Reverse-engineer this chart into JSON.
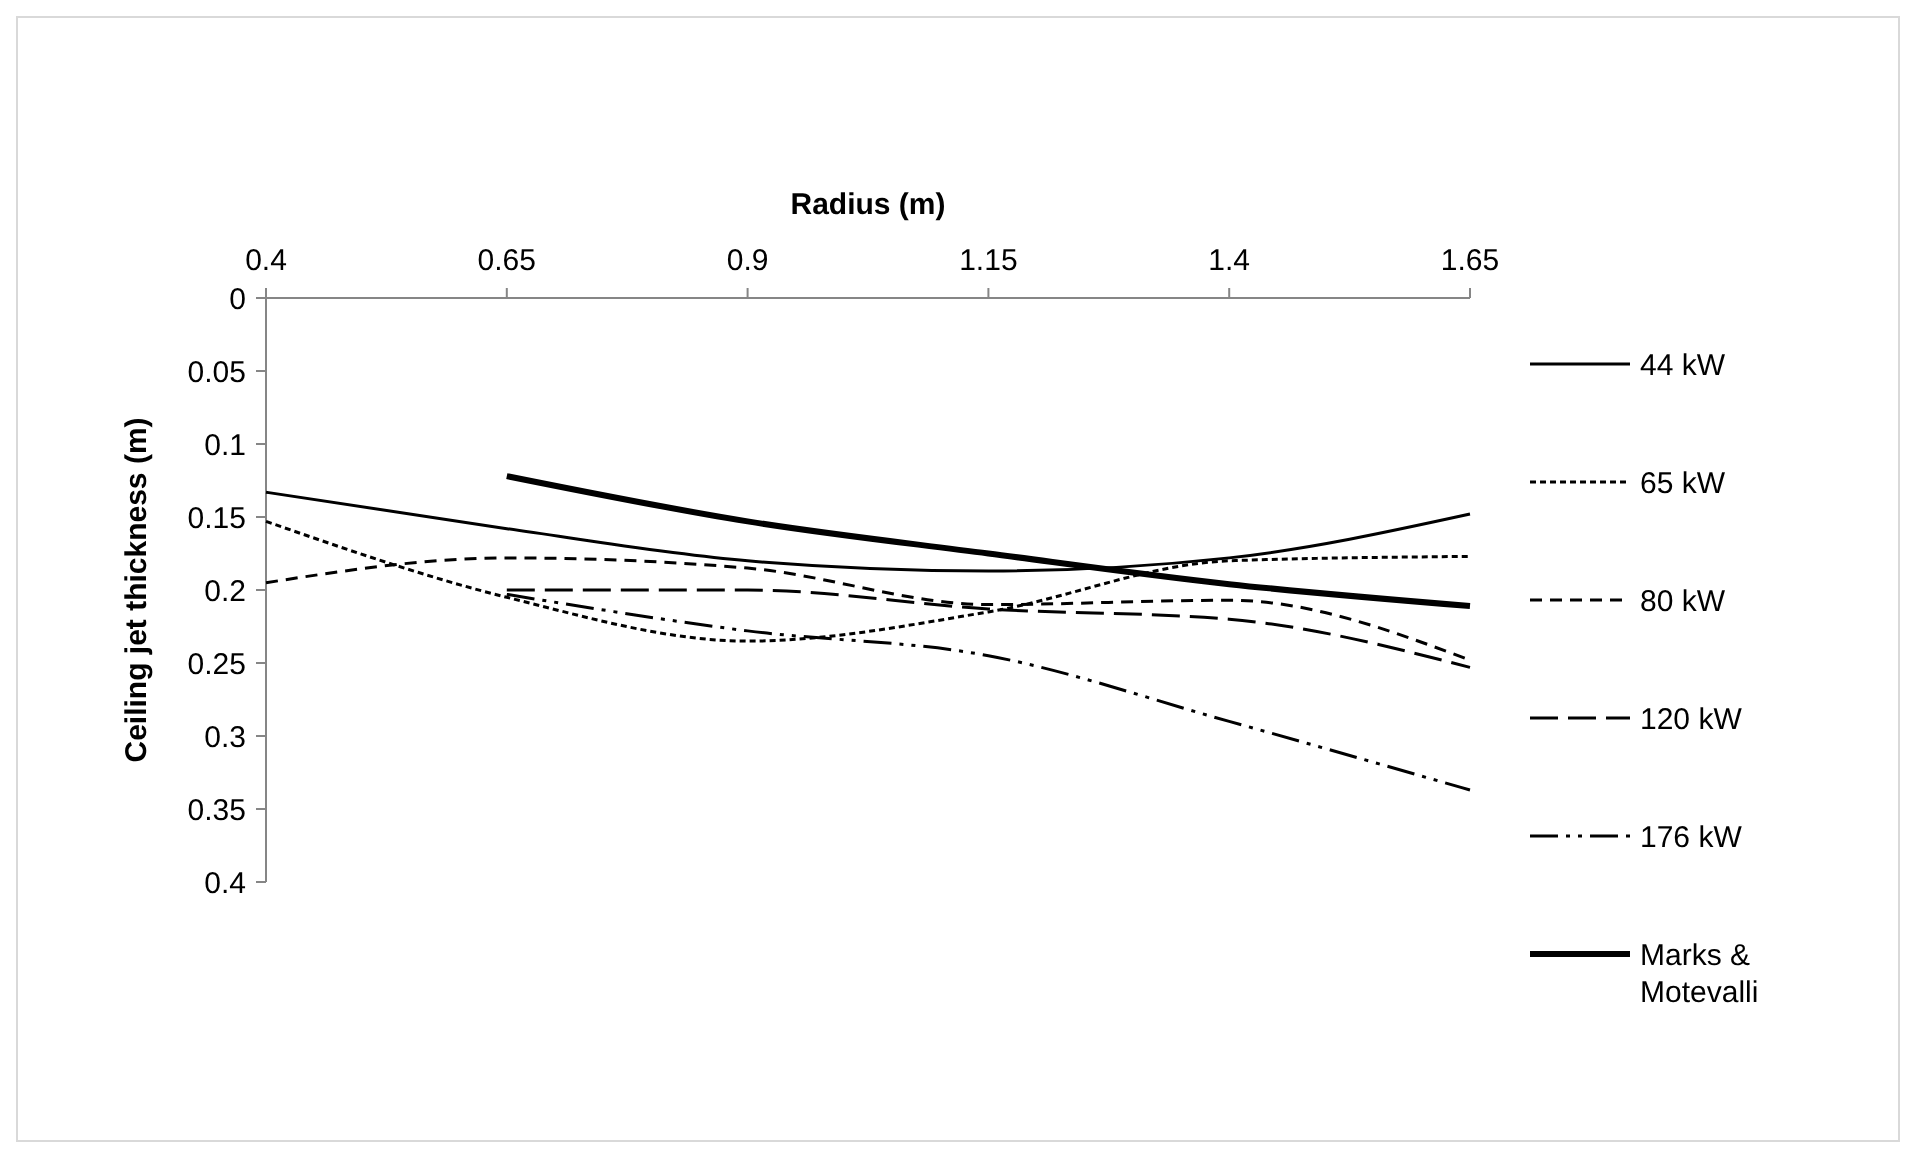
{
  "chart_data": {
    "type": "line",
    "xlabel": "Radius (m)",
    "ylabel": "Ceiling jet thickness (m)",
    "xlim": [
      0.4,
      1.65
    ],
    "xticks": [
      0.4,
      0.65,
      0.9,
      1.15,
      1.4,
      1.65
    ],
    "ylim": [
      0.4,
      0
    ],
    "yticks": [
      0,
      0.05,
      0.1,
      0.15,
      0.2,
      0.25,
      0.3,
      0.35,
      0.4
    ],
    "grid": false,
    "legend": "right",
    "marker": "none",
    "series": [
      {
        "name": "44 kW",
        "color": "#000000",
        "line_style": "solid",
        "x": [
          0.4,
          0.65,
          0.9,
          1.15,
          1.4,
          1.65
        ],
        "values": [
          0.133,
          0.158,
          0.18,
          0.187,
          0.178,
          0.148
        ]
      },
      {
        "name": "65 kW",
        "color": "#000000",
        "line_style": "dotted",
        "x": [
          0.4,
          0.65,
          0.9,
          1.15,
          1.4,
          1.65
        ],
        "values": [
          0.153,
          0.205,
          0.235,
          0.215,
          0.18,
          0.177
        ]
      },
      {
        "name": "80 kW",
        "color": "#000000",
        "line_style": "dashed",
        "x": [
          0.4,
          0.65,
          0.9,
          1.15,
          1.4,
          1.65
        ],
        "values": [
          0.195,
          0.178,
          0.185,
          0.21,
          0.207,
          0.248
        ]
      },
      {
        "name": "120 kW",
        "color": "#000000",
        "line_style": "dashed",
        "x": [
          0.65,
          0.9,
          1.15,
          1.4,
          1.65
        ],
        "values": [
          0.2,
          0.2,
          0.213,
          0.22,
          0.253
        ]
      },
      {
        "name": "176 kW",
        "color": "#000000",
        "line_style": "dashed",
        "x": [
          0.65,
          0.9,
          1.15,
          1.4,
          1.65
        ],
        "values": [
          0.203,
          0.228,
          0.245,
          0.29,
          0.337
        ]
      },
      {
        "name": "Marks & Motevalli",
        "color": "#000000",
        "line_style": "solid",
        "x": [
          0.65,
          0.9,
          1.15,
          1.4,
          1.65
        ],
        "values": [
          0.122,
          0.153,
          0.175,
          0.196,
          0.211
        ]
      }
    ]
  }
}
